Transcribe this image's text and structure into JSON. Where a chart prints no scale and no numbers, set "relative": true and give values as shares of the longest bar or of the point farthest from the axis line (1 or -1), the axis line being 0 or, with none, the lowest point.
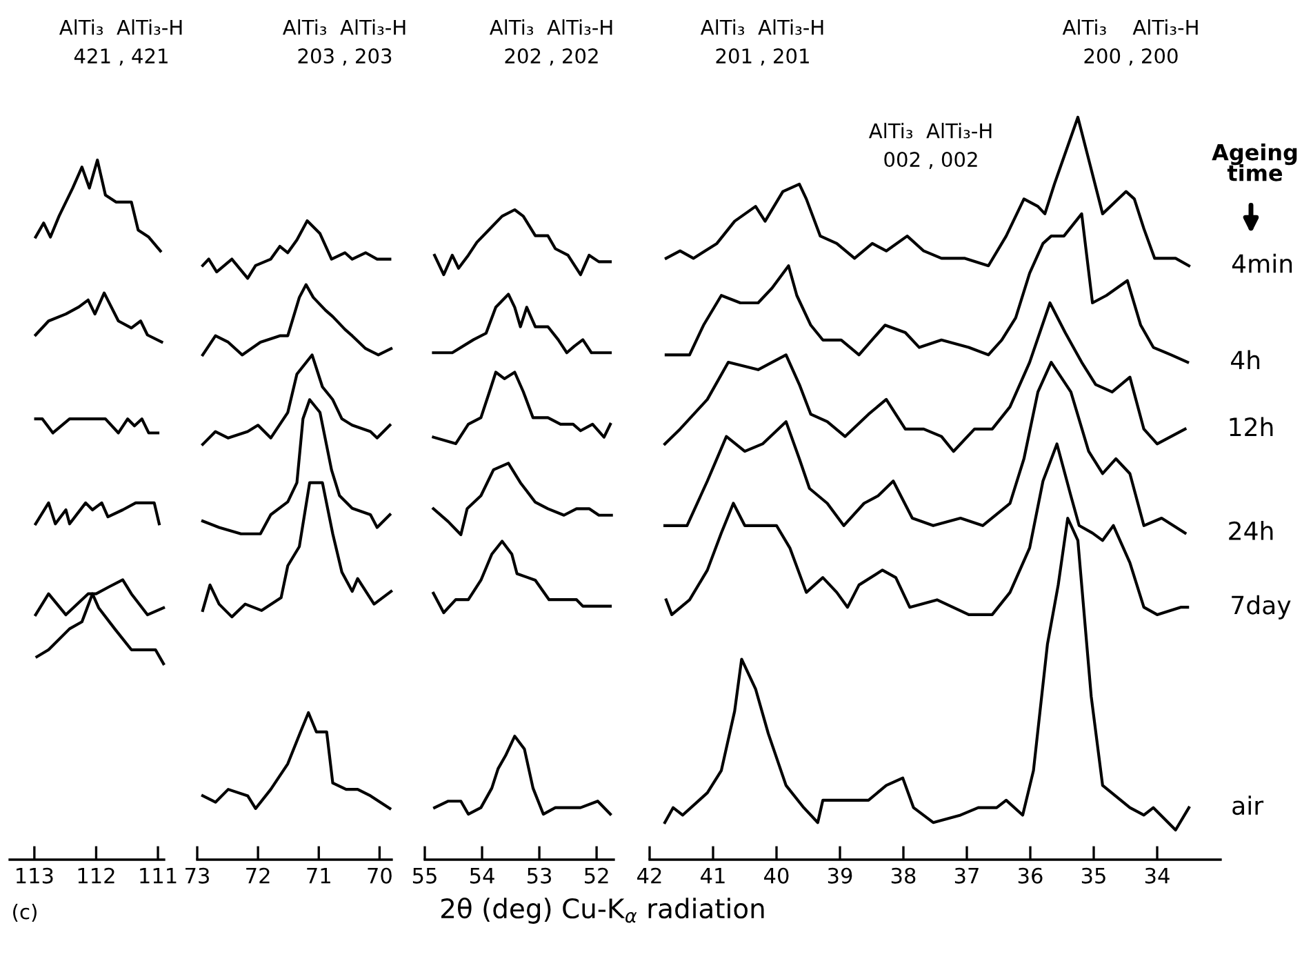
{
  "chart_data": [
    {
      "type": "line",
      "relative": true,
      "tick_labels": "x",
      "xlim": [
        113.4,
        110.9
      ],
      "xticks": [
        113,
        112,
        111
      ],
      "annotations": [
        "AlTi₃  AlTi₃-H\n421 , 421",
        "(c)"
      ],
      "series": [
        {
          "color": "#000000",
          "x": [
            112.98,
            112.85,
            112.74,
            112.6,
            112.38,
            112.23,
            112.11,
            111.98,
            111.85,
            111.68,
            111.43,
            111.32,
            111.15,
            110.96
          ],
          "values": [
            0.89,
            0.91,
            0.89,
            0.92,
            0.96,
            0.99,
            0.96,
            1.0,
            0.95,
            0.94,
            0.94,
            0.9,
            0.89,
            0.87
          ]
        },
        {
          "color": "#000000",
          "x": [
            112.98,
            112.77,
            112.49,
            112.28,
            112.13,
            112.02,
            111.87,
            111.64,
            111.43,
            111.28,
            111.17,
            110.94
          ],
          "values": [
            0.75,
            0.77,
            0.78,
            0.79,
            0.8,
            0.78,
            0.81,
            0.77,
            0.76,
            0.77,
            0.75,
            0.74
          ]
        },
        {
          "color": "#000000",
          "x": [
            112.98,
            112.87,
            112.7,
            112.43,
            112.13,
            111.85,
            111.64,
            111.49,
            111.38,
            111.26,
            111.15,
            111.0
          ],
          "values": [
            0.63,
            0.63,
            0.61,
            0.63,
            0.63,
            0.63,
            0.61,
            0.63,
            0.62,
            0.63,
            0.61,
            0.61
          ]
        },
        {
          "color": "#000000",
          "x": [
            112.98,
            112.77,
            112.66,
            112.49,
            112.43,
            112.17,
            112.06,
            111.91,
            111.81,
            111.57,
            111.36,
            111.21,
            111.06,
            110.98
          ],
          "values": [
            0.48,
            0.51,
            0.48,
            0.5,
            0.48,
            0.51,
            0.5,
            0.51,
            0.49,
            0.5,
            0.51,
            0.51,
            0.51,
            0.48
          ]
        },
        {
          "color": "#000000",
          "x": [
            112.98,
            112.77,
            112.49,
            112.13,
            112.0,
            111.79,
            111.57,
            111.43,
            111.17,
            110.91
          ],
          "values": [
            0.35,
            0.38,
            0.35,
            0.38,
            0.38,
            0.39,
            0.4,
            0.38,
            0.35,
            0.36
          ]
        },
        {
          "color": "#000000",
          "x": [
            112.96,
            112.77,
            112.43,
            112.23,
            112.06,
            111.96,
            111.7,
            111.43,
            111.21,
            111.04,
            110.91
          ],
          "values": [
            0.29,
            0.3,
            0.33,
            0.34,
            0.38,
            0.36,
            0.33,
            0.3,
            0.3,
            0.3,
            0.28
          ]
        }
      ]
    },
    {
      "type": "line",
      "relative": true,
      "tick_labels": "x",
      "xlim": [
        73.0,
        69.8
      ],
      "xticks": [
        73,
        72,
        71,
        70
      ],
      "annotations": [
        "AlTi₃  AlTi₃-H\n203 , 203"
      ],
      "series": [
        {
          "color": "#000000",
          "x": [
            72.91,
            72.81,
            72.68,
            72.43,
            72.17,
            72.04,
            71.79,
            71.64,
            71.51,
            71.36,
            71.19,
            70.98,
            70.79,
            70.57,
            70.45,
            70.23,
            70.04,
            69.83
          ],
          "values": [
            0.93,
            0.94,
            0.92,
            0.94,
            0.91,
            0.93,
            0.94,
            0.96,
            0.95,
            0.97,
            1.0,
            0.98,
            0.94,
            0.95,
            0.94,
            0.95,
            0.94,
            0.94
          ]
        },
        {
          "color": "#000000",
          "x": [
            72.91,
            72.7,
            72.49,
            72.26,
            71.96,
            71.64,
            71.51,
            71.32,
            71.21,
            71.09,
            70.89,
            70.77,
            70.57,
            70.45,
            70.23,
            70.02,
            69.81
          ],
          "values": [
            0.79,
            0.82,
            0.81,
            0.79,
            0.81,
            0.82,
            0.82,
            0.88,
            0.9,
            0.88,
            0.86,
            0.85,
            0.83,
            0.82,
            0.8,
            0.79,
            0.8
          ]
        },
        {
          "color": "#000000",
          "x": [
            72.91,
            72.7,
            72.49,
            72.17,
            72.0,
            71.79,
            71.51,
            71.36,
            71.11,
            70.94,
            70.77,
            70.62,
            70.45,
            70.15,
            70.04,
            69.83
          ],
          "values": [
            0.65,
            0.67,
            0.66,
            0.67,
            0.68,
            0.66,
            0.7,
            0.76,
            0.79,
            0.74,
            0.72,
            0.69,
            0.68,
            0.67,
            0.66,
            0.68
          ]
        },
        {
          "color": "#000000",
          "x": [
            72.91,
            72.64,
            72.28,
            71.96,
            71.79,
            71.51,
            71.36,
            71.26,
            71.15,
            70.98,
            70.79,
            70.66,
            70.45,
            70.15,
            70.04,
            69.83
          ],
          "values": [
            0.53,
            0.52,
            0.51,
            0.51,
            0.54,
            0.56,
            0.59,
            0.69,
            0.72,
            0.7,
            0.61,
            0.57,
            0.55,
            0.54,
            0.52,
            0.54
          ]
        },
        {
          "color": "#000000",
          "x": [
            72.91,
            72.79,
            72.64,
            72.43,
            72.21,
            71.94,
            71.62,
            71.51,
            71.32,
            71.15,
            70.94,
            70.77,
            70.62,
            70.45,
            70.36,
            70.09,
            69.81
          ],
          "values": [
            0.39,
            0.43,
            0.4,
            0.38,
            0.4,
            0.39,
            0.41,
            0.46,
            0.49,
            0.59,
            0.59,
            0.51,
            0.45,
            0.42,
            0.44,
            0.4,
            0.42
          ]
        },
        {
          "color": "#000000",
          "x": [
            72.91,
            72.7,
            72.49,
            72.17,
            72.04,
            71.79,
            71.51,
            71.3,
            71.17,
            71.04,
            70.87,
            70.77,
            70.55,
            70.36,
            70.15,
            69.83
          ],
          "values": [
            0.1,
            0.09,
            0.11,
            0.1,
            0.08,
            0.11,
            0.15,
            0.2,
            0.23,
            0.2,
            0.2,
            0.12,
            0.11,
            0.11,
            0.1,
            0.08
          ]
        }
      ]
    },
    {
      "type": "line",
      "relative": true,
      "tick_labels": "x",
      "xlim": [
        55.0,
        51.7
      ],
      "xticks": [
        55,
        54,
        53,
        52
      ],
      "annotations": [
        "AlTi₃  AlTi₃-H\n202 , 202"
      ],
      "series": [
        {
          "color": "#000000",
          "x": [
            54.83,
            54.67,
            54.52,
            54.41,
            54.24,
            54.09,
            53.87,
            53.65,
            53.43,
            53.28,
            53.07,
            52.85,
            52.72,
            52.5,
            52.28,
            52.13,
            51.96,
            51.76
          ],
          "values": [
            0.93,
            0.9,
            0.93,
            0.91,
            0.93,
            0.95,
            0.97,
            0.99,
            1.0,
            0.99,
            0.96,
            0.96,
            0.94,
            0.93,
            0.9,
            0.93,
            0.92,
            0.92
          ]
        },
        {
          "color": "#000000",
          "x": [
            54.85,
            54.52,
            54.15,
            53.93,
            53.76,
            53.54,
            53.43,
            53.33,
            53.22,
            53.07,
            52.85,
            52.67,
            52.52,
            52.39,
            52.24,
            52.09,
            51.76
          ],
          "values": [
            0.78,
            0.78,
            0.8,
            0.81,
            0.85,
            0.87,
            0.85,
            0.82,
            0.85,
            0.82,
            0.82,
            0.8,
            0.78,
            0.79,
            0.8,
            0.78,
            0.78
          ]
        },
        {
          "color": "#000000",
          "x": [
            54.85,
            54.46,
            54.24,
            54.02,
            53.87,
            53.76,
            53.61,
            53.43,
            53.28,
            53.11,
            52.85,
            52.63,
            52.41,
            52.28,
            52.07,
            51.87,
            51.76
          ],
          "values": [
            0.65,
            0.64,
            0.67,
            0.68,
            0.72,
            0.75,
            0.74,
            0.75,
            0.72,
            0.68,
            0.68,
            0.67,
            0.67,
            0.66,
            0.67,
            0.65,
            0.67
          ]
        },
        {
          "color": "#000000",
          "x": [
            54.85,
            54.59,
            54.37,
            54.26,
            54.02,
            53.8,
            53.54,
            53.33,
            53.07,
            52.85,
            52.57,
            52.35,
            52.13,
            51.96,
            51.74
          ],
          "values": [
            0.54,
            0.52,
            0.5,
            0.54,
            0.56,
            0.6,
            0.61,
            0.58,
            0.55,
            0.54,
            0.53,
            0.54,
            0.54,
            0.53,
            0.53
          ]
        },
        {
          "color": "#000000",
          "x": [
            54.85,
            54.67,
            54.46,
            54.24,
            54.02,
            53.83,
            53.65,
            53.48,
            53.39,
            53.07,
            52.83,
            52.57,
            52.35,
            52.24,
            51.98,
            51.76
          ],
          "values": [
            0.41,
            0.38,
            0.4,
            0.4,
            0.43,
            0.47,
            0.49,
            0.47,
            0.44,
            0.43,
            0.4,
            0.4,
            0.4,
            0.39,
            0.39,
            0.39
          ]
        },
        {
          "color": "#000000",
          "x": [
            54.83,
            54.59,
            54.37,
            54.24,
            54.02,
            53.83,
            53.72,
            53.59,
            53.43,
            53.26,
            53.11,
            52.93,
            52.72,
            52.5,
            52.28,
            51.98,
            51.76
          ],
          "values": [
            0.08,
            0.09,
            0.09,
            0.07,
            0.08,
            0.11,
            0.14,
            0.16,
            0.19,
            0.17,
            0.11,
            0.07,
            0.08,
            0.08,
            0.08,
            0.09,
            0.07
          ]
        }
      ]
    },
    {
      "type": "line",
      "relative": true,
      "tick_labels": "x",
      "xlim": [
        42.0,
        33.0
      ],
      "xticks": [
        42,
        41,
        40,
        39,
        38,
        37,
        36,
        35,
        34
      ],
      "xlabel": "2θ (deg) Cu-K$_{α}$ radiation",
      "legend_title": "Ageing time",
      "annotations": [
        "AlTi₃  AlTi₃-H\n201 , 201",
        "AlTi₃  AlTi₃-H\n002 , 002",
        "AlTi₃    AlTi₃-H\n200 , 200"
      ],
      "series": [
        {
          "name": "4min",
          "color": "#000000",
          "x": [
            41.74,
            41.52,
            41.31,
            40.94,
            40.66,
            40.33,
            40.18,
            39.9,
            39.64,
            39.53,
            39.31,
            39.05,
            38.77,
            38.49,
            38.27,
            37.94,
            37.68,
            37.4,
            37.03,
            36.66,
            36.38,
            36.1,
            35.88,
            35.77,
            35.62,
            35.25,
            35.04,
            34.86,
            34.49,
            34.36,
            34.21,
            34.04,
            33.71,
            33.5
          ],
          "values": [
            0.81,
            0.82,
            0.81,
            0.83,
            0.86,
            0.88,
            0.86,
            0.9,
            0.91,
            0.89,
            0.84,
            0.83,
            0.81,
            0.83,
            0.82,
            0.84,
            0.82,
            0.81,
            0.81,
            0.8,
            0.84,
            0.89,
            0.88,
            0.87,
            0.91,
            1.0,
            0.93,
            0.87,
            0.9,
            0.89,
            0.85,
            0.81,
            0.81,
            0.8
          ]
        },
        {
          "name": "4h",
          "color": "#000000",
          "x": [
            41.74,
            41.37,
            41.15,
            40.87,
            40.57,
            40.29,
            40.07,
            39.81,
            39.68,
            39.46,
            39.27,
            38.98,
            38.7,
            38.29,
            37.97,
            37.75,
            37.4,
            36.97,
            36.66,
            36.45,
            36.23,
            36.01,
            35.8,
            35.67,
            35.47,
            35.19,
            35.02,
            34.8,
            34.47,
            34.26,
            34.06,
            33.78,
            33.52
          ],
          "values": [
            0.68,
            0.68,
            0.72,
            0.76,
            0.75,
            0.75,
            0.77,
            0.8,
            0.76,
            0.72,
            0.7,
            0.7,
            0.68,
            0.72,
            0.71,
            0.69,
            0.7,
            0.69,
            0.68,
            0.7,
            0.73,
            0.79,
            0.83,
            0.84,
            0.84,
            0.87,
            0.75,
            0.76,
            0.78,
            0.72,
            0.69,
            0.68,
            0.67
          ]
        },
        {
          "name": "12h",
          "color": "#000000",
          "x": [
            41.76,
            41.52,
            41.09,
            40.76,
            40.29,
            40.07,
            39.85,
            39.64,
            39.46,
            39.2,
            38.92,
            38.55,
            38.27,
            37.97,
            37.68,
            37.4,
            37.21,
            36.88,
            36.6,
            36.32,
            36.01,
            35.69,
            35.45,
            35.19,
            34.97,
            34.71,
            34.43,
            34.21,
            34.0,
            33.56
          ],
          "values": [
            0.56,
            0.58,
            0.62,
            0.67,
            0.66,
            0.67,
            0.68,
            0.64,
            0.6,
            0.59,
            0.57,
            0.6,
            0.62,
            0.58,
            0.58,
            0.57,
            0.55,
            0.58,
            0.58,
            0.61,
            0.67,
            0.75,
            0.71,
            0.67,
            0.64,
            0.63,
            0.65,
            0.58,
            0.56,
            0.58
          ]
        },
        {
          "name": "24h",
          "color": "#000000",
          "x": [
            41.76,
            41.41,
            41.09,
            40.79,
            40.5,
            40.22,
            39.85,
            39.64,
            39.48,
            39.2,
            38.94,
            38.62,
            38.4,
            38.16,
            37.86,
            37.53,
            37.1,
            36.75,
            36.32,
            36.1,
            35.88,
            35.67,
            35.36,
            35.08,
            34.86,
            34.65,
            34.43,
            34.21,
            33.93,
            33.56
          ],
          "values": [
            0.45,
            0.45,
            0.51,
            0.57,
            0.55,
            0.56,
            0.59,
            0.54,
            0.5,
            0.48,
            0.45,
            0.48,
            0.49,
            0.51,
            0.46,
            0.45,
            0.46,
            0.45,
            0.48,
            0.54,
            0.63,
            0.67,
            0.63,
            0.55,
            0.52,
            0.54,
            0.52,
            0.45,
            0.46,
            0.44
          ]
        },
        {
          "name": "7day",
          "color": "#000000",
          "x": [
            41.74,
            41.65,
            41.37,
            41.09,
            40.87,
            40.68,
            40.5,
            40.29,
            40.0,
            39.79,
            39.53,
            39.27,
            39.05,
            38.88,
            38.7,
            38.33,
            38.12,
            37.9,
            37.47,
            36.97,
            36.6,
            36.32,
            36.01,
            35.8,
            35.58,
            35.36,
            35.23,
            35.02,
            34.86,
            34.69,
            34.43,
            34.21,
            34.0,
            33.63,
            33.52
          ],
          "values": [
            0.35,
            0.33,
            0.35,
            0.39,
            0.44,
            0.48,
            0.45,
            0.45,
            0.45,
            0.42,
            0.36,
            0.38,
            0.36,
            0.34,
            0.37,
            0.39,
            0.38,
            0.34,
            0.35,
            0.33,
            0.33,
            0.36,
            0.42,
            0.51,
            0.56,
            0.49,
            0.45,
            0.44,
            0.43,
            0.45,
            0.4,
            0.34,
            0.33,
            0.34,
            0.34
          ]
        },
        {
          "name": "air",
          "color": "#000000",
          "x": [
            41.76,
            41.63,
            41.48,
            41.09,
            40.87,
            40.66,
            40.55,
            40.33,
            40.13,
            39.85,
            39.57,
            39.35,
            39.27,
            38.92,
            38.55,
            38.27,
            38.01,
            37.84,
            37.53,
            37.1,
            36.82,
            36.53,
            36.38,
            36.12,
            35.95,
            35.73,
            35.56,
            35.41,
            35.25,
            35.04,
            34.86,
            34.43,
            34.21,
            34.06,
            33.71,
            33.5
          ],
          "values": [
            0.05,
            0.07,
            0.06,
            0.09,
            0.12,
            0.2,
            0.27,
            0.23,
            0.17,
            0.1,
            0.07,
            0.05,
            0.08,
            0.08,
            0.08,
            0.1,
            0.11,
            0.07,
            0.05,
            0.06,
            0.07,
            0.07,
            0.08,
            0.06,
            0.12,
            0.29,
            0.37,
            0.46,
            0.43,
            0.22,
            0.1,
            0.07,
            0.06,
            0.07,
            0.04,
            0.07
          ]
        }
      ]
    }
  ]
}
